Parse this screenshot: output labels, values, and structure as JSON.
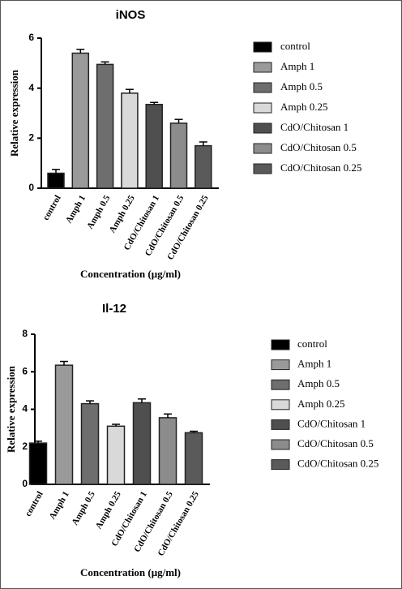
{
  "chart_data": [
    {
      "type": "bar",
      "title": "iNOS",
      "x_label": "Concentration (μg/ml)",
      "y_label": "Relative expression",
      "categories": [
        "control",
        "Amph 1",
        "Amph 0.5",
        "Amph 0.25",
        "CdO/Chitosan 1",
        "CdO/Chitosan 0.5",
        "CdO/Chitosan 0.25"
      ],
      "values": [
        0.6,
        5.4,
        4.95,
        3.8,
        3.35,
        2.6,
        1.7
      ],
      "errors": [
        0.15,
        0.15,
        0.1,
        0.15,
        0.08,
        0.15,
        0.15
      ],
      "colors": [
        "#000000",
        "#9a9a9a",
        "#6e6e6e",
        "#d9d9d9",
        "#4f4f4f",
        "#8c8c8c",
        "#5a5a5a"
      ],
      "ylim": [
        0,
        6
      ],
      "yticks": [
        0,
        2,
        4,
        6
      ],
      "legend": "right"
    },
    {
      "type": "bar",
      "title": "Il-12",
      "x_label": "Concentration (μg/ml)",
      "y_label": "Relative expression",
      "categories": [
        "control",
        "Amph 1",
        "Amph 0.5",
        "Amph 0.25",
        "CdO/Chitosan 1",
        "CdO/Chitosan 0.5",
        "CdO/Chitosan 0.25"
      ],
      "values": [
        2.2,
        6.35,
        4.3,
        3.1,
        4.35,
        3.55,
        2.75
      ],
      "errors": [
        0.1,
        0.2,
        0.15,
        0.1,
        0.2,
        0.2,
        0.08
      ],
      "colors": [
        "#000000",
        "#9a9a9a",
        "#6e6e6e",
        "#d9d9d9",
        "#4f4f4f",
        "#8c8c8c",
        "#5a5a5a"
      ],
      "ylim": [
        0,
        8
      ],
      "yticks": [
        0,
        2,
        4,
        6,
        8
      ],
      "legend": "right"
    }
  ]
}
